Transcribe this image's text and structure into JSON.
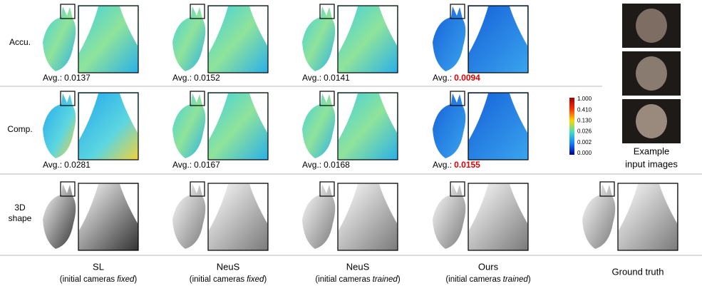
{
  "row_labels": [
    "Accu.",
    "Comp."
  ],
  "shape_label": [
    "3D",
    "shape"
  ],
  "avg_label": "Avg.:",
  "accuracy": [
    "0.0137",
    "0.0152",
    "0.0141",
    "0.0094"
  ],
  "completeness": [
    "0.0281",
    "0.0167",
    "0.0168",
    "0.0155"
  ],
  "colorbar_ticks": [
    "1.000",
    "0.410",
    "0.130",
    "0.026",
    "0.002",
    "0.000"
  ],
  "columns": [
    {
      "name": "SL",
      "note_before": "(initial cameras",
      "note_emph": "fixed",
      "note_after": ")"
    },
    {
      "name": "NeuS",
      "note_before": "(initial cameras",
      "note_emph": "fixed",
      "note_after": ")"
    },
    {
      "name": "NeuS",
      "note_before": "(initial cameras",
      "note_emph": "trained",
      "note_after": ")"
    },
    {
      "name": "Ours",
      "note_before": "(initial cameras",
      "note_emph": "trained",
      "note_after": ")"
    },
    {
      "name": "Ground truth"
    }
  ],
  "example_label": [
    "Example",
    "input images"
  ]
}
